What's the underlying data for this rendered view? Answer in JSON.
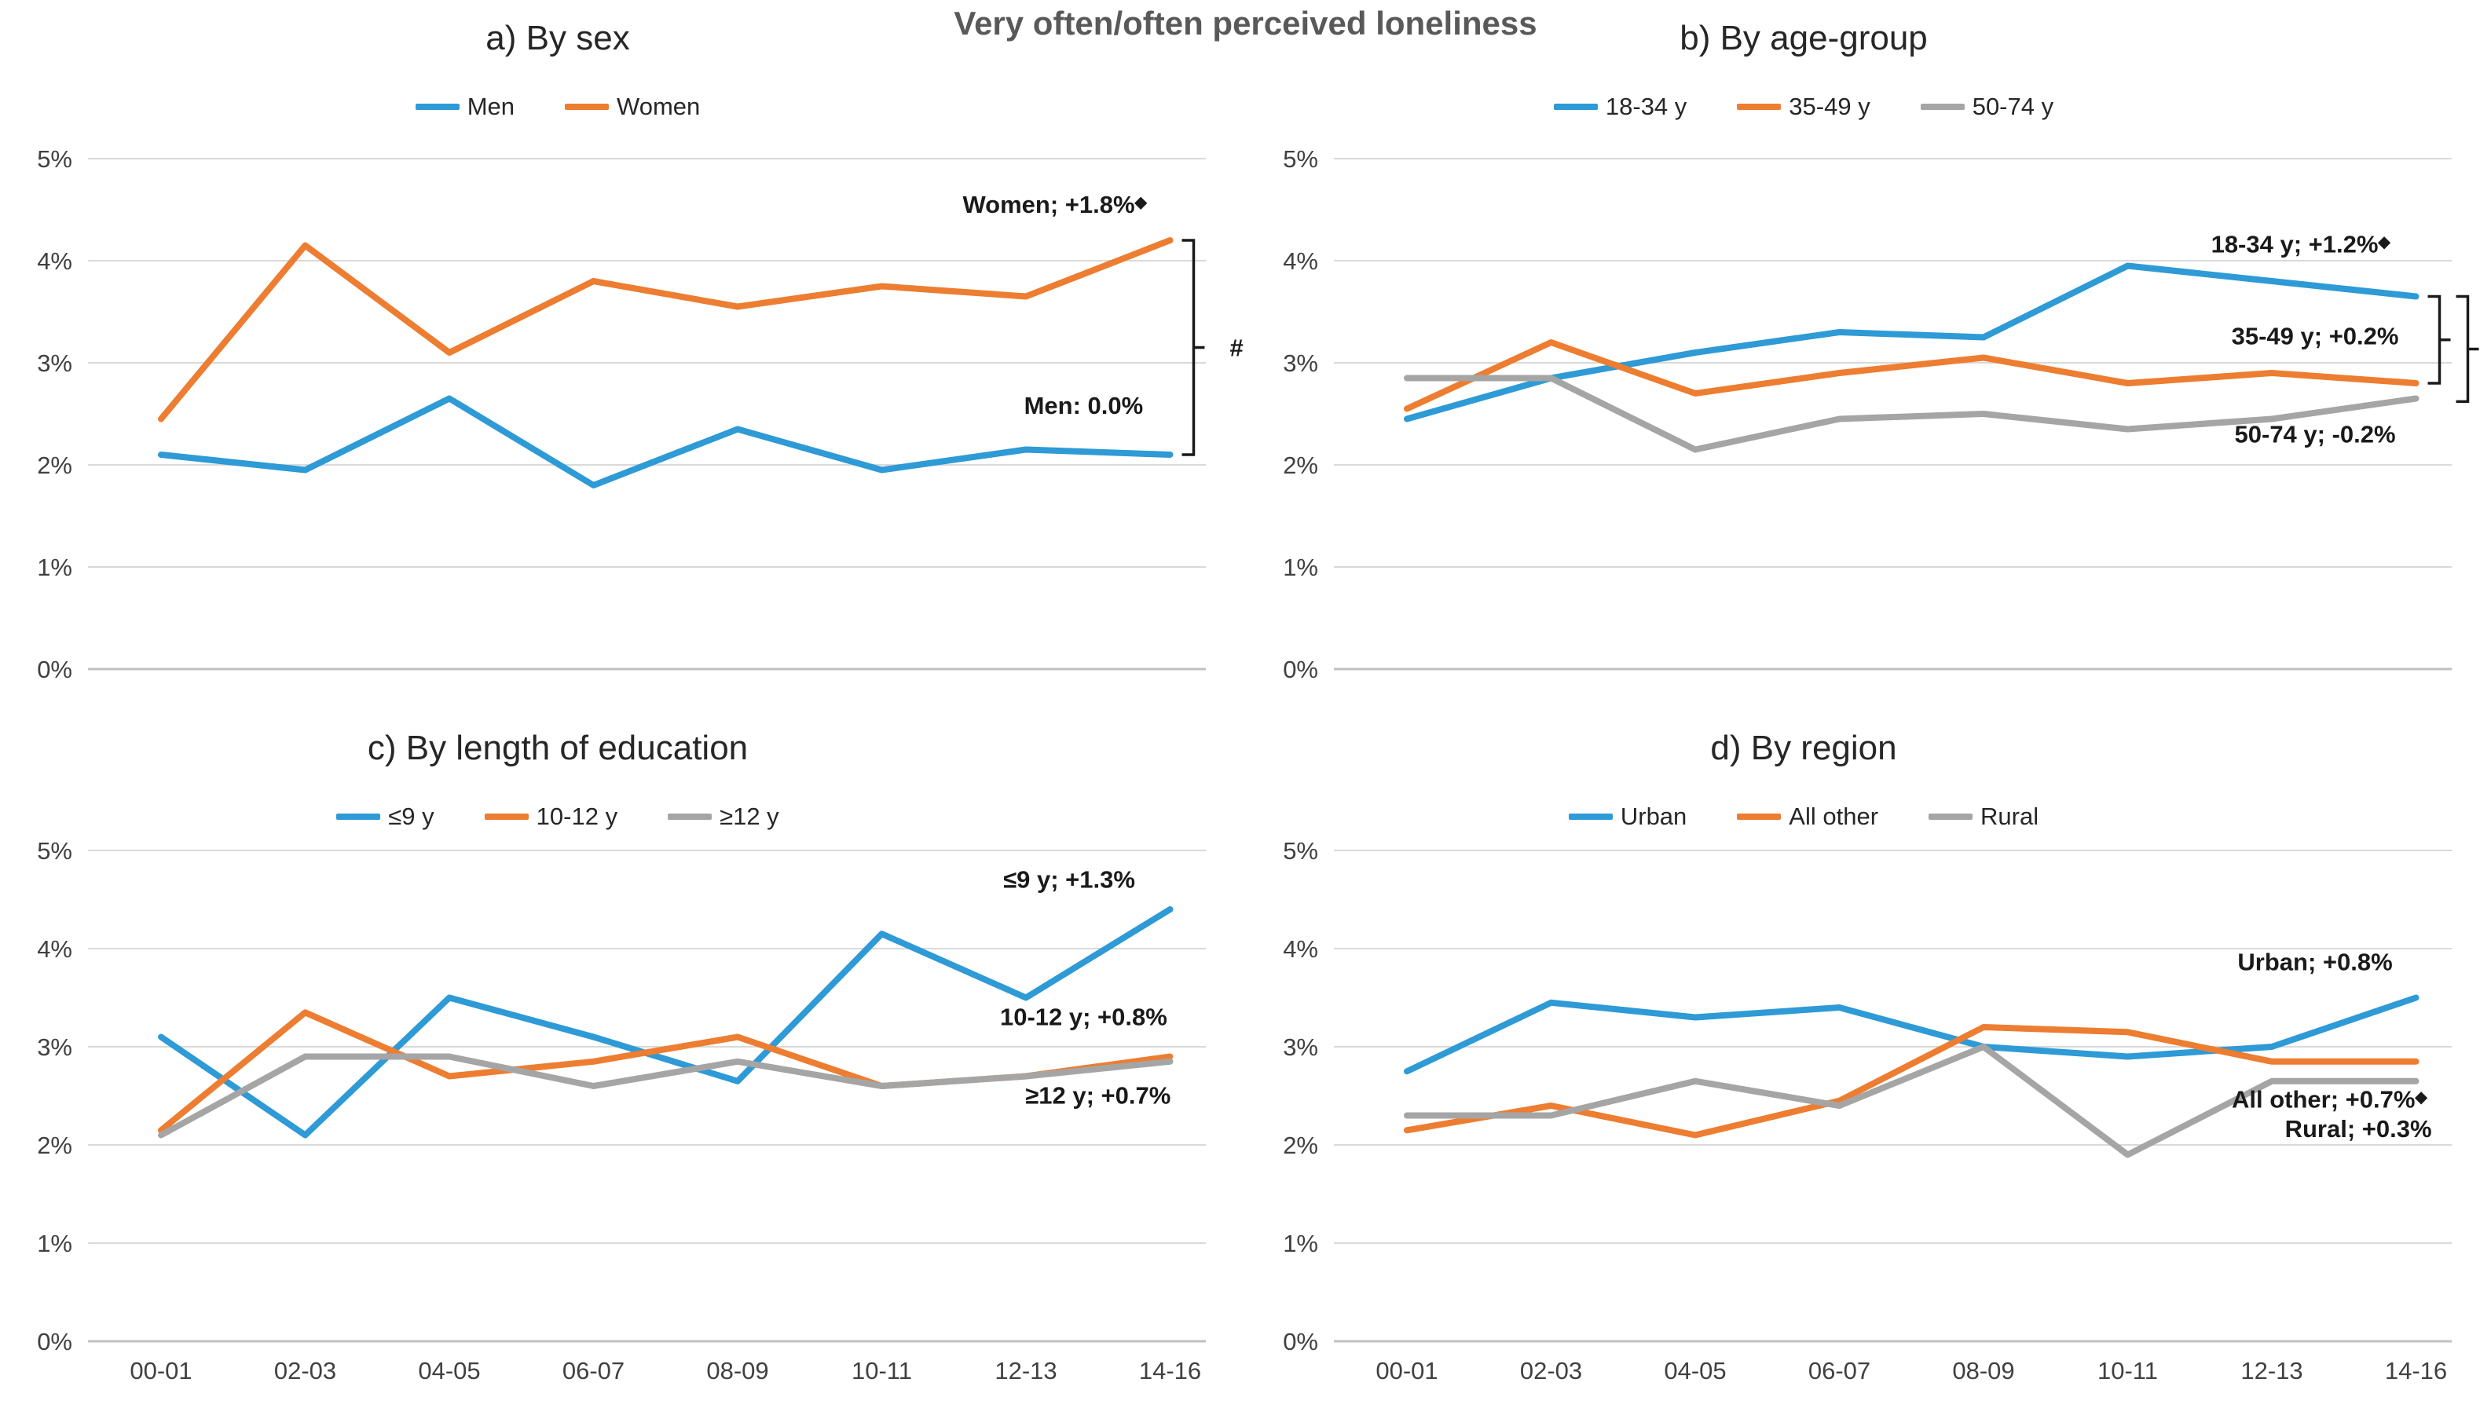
{
  "main_title": "Very often/often perceived loneliness",
  "colors": {
    "blue": "#2E9AD6",
    "orange": "#ED7D31",
    "gray": "#A5A5A5",
    "grid": "#D9D9D9",
    "axis_line": "#C0C0C0",
    "main_title": "#595959",
    "panel_title": "#262626",
    "tick_label": "#404040",
    "annotation": "#1A1A1A"
  },
  "y_axis": {
    "min": 0,
    "max": 5,
    "tick_labels": [
      "5%",
      "4%",
      "3%",
      "2%",
      "1%",
      "0%"
    ]
  },
  "categories": [
    "00-01",
    "02-03",
    "04-05",
    "06-07",
    "08-09",
    "10-11",
    "12-13",
    "14-16"
  ],
  "chart_data": [
    {
      "id": "a",
      "type": "line",
      "title": "a) By sex",
      "show_x_labels": false,
      "series": [
        {
          "name": "Men",
          "color": "#2E9AD6",
          "values": [
            2.1,
            1.95,
            2.65,
            1.8,
            2.35,
            1.95,
            2.15,
            2.1
          ]
        },
        {
          "name": "Women",
          "color": "#ED7D31",
          "values": [
            2.45,
            4.15,
            3.1,
            3.8,
            3.55,
            3.75,
            3.65,
            4.2
          ]
        }
      ],
      "annotations": [
        {
          "text": "Women; +1.8%",
          "diamond": true,
          "x": 6.2,
          "y": 4.47
        },
        {
          "text": "Men: 0.0%",
          "diamond": false,
          "x": 6.4,
          "y": 2.5
        }
      ],
      "brackets": [
        {
          "y_top": 4.2,
          "y_bottom": 2.1,
          "hash": true
        }
      ]
    },
    {
      "id": "b",
      "type": "line",
      "title": "b) By age-group",
      "show_x_labels": false,
      "series": [
        {
          "name": "18-34 y",
          "color": "#2E9AD6",
          "values": [
            2.45,
            2.85,
            3.1,
            3.3,
            3.25,
            3.95,
            3.8,
            3.65
          ]
        },
        {
          "name": "35-49 y",
          "color": "#ED7D31",
          "values": [
            2.55,
            3.2,
            2.7,
            2.9,
            3.05,
            2.8,
            2.9,
            2.8
          ]
        },
        {
          "name": "50-74 y",
          "color": "#A5A5A5",
          "values": [
            2.85,
            2.85,
            2.15,
            2.45,
            2.5,
            2.35,
            2.45,
            2.65
          ]
        }
      ],
      "annotations": [
        {
          "text": "18-34 y; +1.2%",
          "diamond": true,
          "x": 6.2,
          "y": 4.08
        },
        {
          "text": "35-49 y; +0.2%",
          "diamond": false,
          "x": 6.3,
          "y": 3.18
        },
        {
          "text": "50-74 y; -0.2%",
          "diamond": false,
          "x": 6.3,
          "y": 2.22
        }
      ],
      "brackets": [
        {
          "y_top": 3.65,
          "y_bottom": 2.8,
          "hash": false
        },
        {
          "y_top": 3.65,
          "y_bottom": 2.62,
          "hash": true
        }
      ]
    },
    {
      "id": "c",
      "type": "line",
      "title": "c) By length of education",
      "show_x_labels": true,
      "series": [
        {
          "name": "≤9 y",
          "color": "#2E9AD6",
          "values": [
            3.1,
            2.1,
            3.5,
            3.1,
            2.65,
            4.15,
            3.5,
            4.4
          ]
        },
        {
          "name": "10-12 y",
          "color": "#ED7D31",
          "values": [
            2.15,
            3.35,
            2.7,
            2.85,
            3.1,
            2.6,
            2.7,
            2.9
          ]
        },
        {
          "name": "≥12 y",
          "color": "#A5A5A5",
          "values": [
            2.1,
            2.9,
            2.9,
            2.6,
            2.85,
            2.6,
            2.7,
            2.85
          ]
        }
      ],
      "annotations": [
        {
          "text": "≤9 y; +1.3%",
          "diamond": false,
          "x": 6.3,
          "y": 4.62
        },
        {
          "text": "10-12 y; +0.8%",
          "diamond": false,
          "x": 6.4,
          "y": 3.22
        },
        {
          "text": "≥12 y; +0.7%",
          "diamond": false,
          "x": 6.5,
          "y": 2.42
        }
      ],
      "brackets": []
    },
    {
      "id": "d",
      "type": "line",
      "title": "d) By region",
      "show_x_labels": true,
      "series": [
        {
          "name": "Urban",
          "color": "#2E9AD6",
          "values": [
            2.75,
            3.45,
            3.3,
            3.4,
            3.0,
            2.9,
            3.0,
            3.5
          ]
        },
        {
          "name": "All other",
          "color": "#ED7D31",
          "values": [
            2.15,
            2.4,
            2.1,
            2.45,
            3.2,
            3.15,
            2.85,
            2.85
          ]
        },
        {
          "name": "Rural",
          "color": "#A5A5A5",
          "values": [
            2.3,
            2.3,
            2.65,
            2.4,
            3.0,
            1.9,
            2.65,
            2.65
          ]
        }
      ],
      "annotations": [
        {
          "text": "Urban; +0.8%",
          "diamond": false,
          "x": 6.3,
          "y": 3.78
        },
        {
          "text": "All other; +0.7%",
          "diamond": true,
          "x": 6.4,
          "y": 2.38
        },
        {
          "text": "Rural; +0.3%",
          "diamond": false,
          "x": 6.6,
          "y": 2.08
        }
      ],
      "brackets": []
    }
  ]
}
